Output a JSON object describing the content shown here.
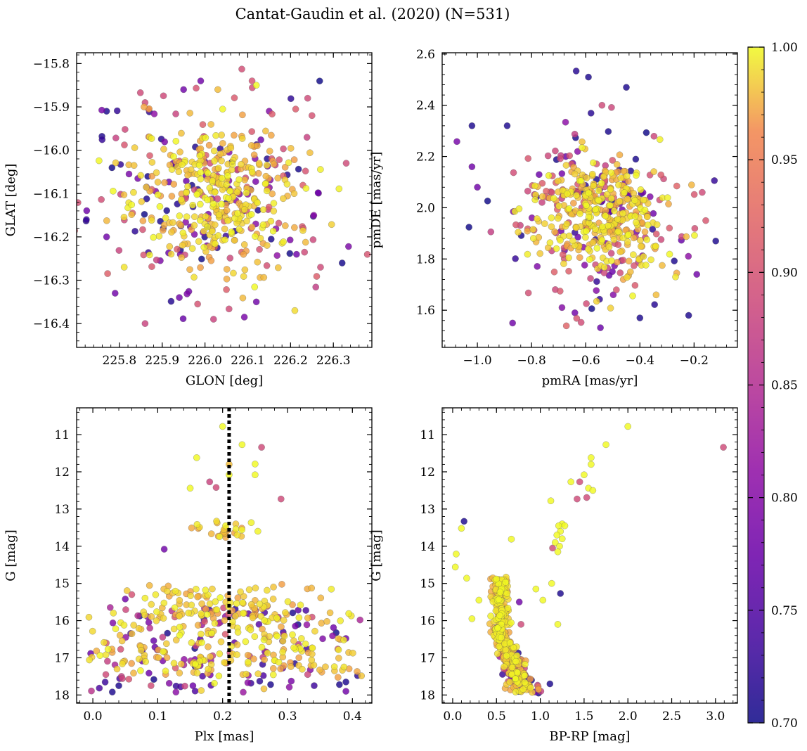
{
  "figure_title": "Cantat-Gaudin et al. (2020) (N=531)",
  "colorbar": {
    "min": 0.7,
    "max": 1.0,
    "tick_labels": [
      "0.70",
      "0.75",
      "0.80",
      "0.85",
      "0.90",
      "0.95",
      "1.00"
    ],
    "tick_values": [
      0.7,
      0.75,
      0.8,
      0.85,
      0.9,
      0.95,
      1.0
    ],
    "colormap": "plasma"
  },
  "chart_data": [
    {
      "id": "sky",
      "type": "scatter",
      "title": "",
      "xlabel": "GLON [deg]",
      "ylabel": "GLAT [deg]",
      "xlim": [
        225.7,
        226.39
      ],
      "ylim": [
        -16.455,
        -15.775
      ],
      "y_inverted": false,
      "xticks": [
        225.8,
        225.9,
        226.0,
        226.1,
        226.2,
        226.3
      ],
      "xtick_labels": [
        "225.8",
        "225.9",
        "226.0",
        "226.1",
        "226.2",
        "226.3"
      ],
      "yticks": [
        -15.8,
        -15.9,
        -16.0,
        -16.1,
        -16.2,
        -16.3,
        -16.4
      ],
      "ytick_labels": [
        "−15.8",
        "−15.9",
        "−16.0",
        "−16.1",
        "−16.2",
        "−16.3",
        "−16.4"
      ],
      "cluster": {
        "cx": 226.02,
        "cy": -16.1,
        "sx": 0.1,
        "sy": 0.09,
        "n": 531,
        "seed": 11
      },
      "points": [
        {
          "x": 225.77,
          "y": -15.91,
          "p": 0.71
        },
        {
          "x": 225.86,
          "y": -15.89,
          "p": 0.89
        },
        {
          "x": 226.03,
          "y": -15.86,
          "p": 0.98
        },
        {
          "x": 226.11,
          "y": -15.84,
          "p": 0.9
        },
        {
          "x": 226.12,
          "y": -15.85,
          "p": 1.0
        },
        {
          "x": 225.99,
          "y": -15.84,
          "p": 0.78
        },
        {
          "x": 225.95,
          "y": -15.86,
          "p": 0.78
        },
        {
          "x": 226.24,
          "y": -15.88,
          "p": 0.89
        },
        {
          "x": 226.25,
          "y": -15.92,
          "p": 0.9
        },
        {
          "x": 226.33,
          "y": -16.03,
          "p": 0.89
        },
        {
          "x": 225.86,
          "y": -16.4,
          "p": 0.88
        },
        {
          "x": 226.02,
          "y": -16.39,
          "p": 0.88
        },
        {
          "x": 225.79,
          "y": -16.33,
          "p": 0.78
        },
        {
          "x": 225.94,
          "y": -16.34,
          "p": 0.78
        },
        {
          "x": 226.12,
          "y": -16.35,
          "p": 0.78
        },
        {
          "x": 226.21,
          "y": -16.37,
          "p": 0.99
        },
        {
          "x": 226.27,
          "y": -16.27,
          "p": 0.89
        },
        {
          "x": 225.77,
          "y": -16.2,
          "p": 0.78
        }
      ]
    },
    {
      "id": "pm",
      "type": "scatter",
      "title": "",
      "xlabel": "pmRA [mas/yr]",
      "ylabel": "pmDE [mas/yr]",
      "xlim": [
        -1.13,
        -0.04
      ],
      "ylim": [
        1.455,
        2.605
      ],
      "y_inverted": false,
      "xticks": [
        -1.0,
        -0.8,
        -0.6,
        -0.4,
        -0.2
      ],
      "xtick_labels": [
        "−1.0",
        "−0.8",
        "−0.6",
        "−0.4",
        "−0.2"
      ],
      "yticks": [
        1.6,
        1.8,
        2.0,
        2.2,
        2.4,
        2.6
      ],
      "ytick_labels": [
        "1.6",
        "1.8",
        "2.0",
        "2.2",
        "2.4",
        "2.6"
      ],
      "cluster": {
        "cx": -0.56,
        "cy": 1.97,
        "sx": 0.12,
        "sy": 0.12,
        "n": 531,
        "seed": 23
      },
      "points": [
        {
          "x": -0.59,
          "y": 2.51,
          "p": 0.71
        },
        {
          "x": -0.45,
          "y": 2.47,
          "p": 0.71
        },
        {
          "x": -1.02,
          "y": 2.32,
          "p": 0.71
        },
        {
          "x": -0.89,
          "y": 2.32,
          "p": 0.71
        },
        {
          "x": -0.54,
          "y": 2.4,
          "p": 0.89
        },
        {
          "x": -0.12,
          "y": 1.87,
          "p": 0.71
        },
        {
          "x": -0.22,
          "y": 1.58,
          "p": 0.71
        },
        {
          "x": -0.4,
          "y": 1.57,
          "p": 0.71
        },
        {
          "x": -0.87,
          "y": 1.55,
          "p": 0.78
        },
        {
          "x": -1.0,
          "y": 2.08,
          "p": 0.78
        },
        {
          "x": -1.02,
          "y": 2.16,
          "p": 0.78
        },
        {
          "x": -0.17,
          "y": 2.06,
          "p": 0.89
        },
        {
          "x": -0.34,
          "y": 1.66,
          "p": 0.98
        },
        {
          "x": -0.64,
          "y": 1.59,
          "p": 0.78
        },
        {
          "x": -0.19,
          "y": 1.74,
          "p": 0.78
        }
      ]
    },
    {
      "id": "plx",
      "type": "scatter",
      "title": "",
      "xlabel": "Plx [mas]",
      "ylabel": "G [mag]",
      "xlim": [
        -0.025,
        0.43
      ],
      "ylim": [
        18.22,
        10.28
      ],
      "y_inverted": true,
      "xticks": [
        0.0,
        0.1,
        0.2,
        0.3,
        0.4
      ],
      "xtick_labels": [
        "0.0",
        "0.1",
        "0.2",
        "0.3",
        "0.4"
      ],
      "yticks": [
        11,
        12,
        13,
        14,
        15,
        16,
        17,
        18
      ],
      "ytick_labels": [
        "11",
        "12",
        "13",
        "14",
        "15",
        "16",
        "17",
        "18"
      ],
      "vline": {
        "x": 0.21,
        "style": "dotted"
      },
      "points": [
        {
          "x": 0.2,
          "y": 10.78,
          "p": 1.0
        },
        {
          "x": 0.23,
          "y": 11.27,
          "p": 1.0
        },
        {
          "x": 0.26,
          "y": 11.34,
          "p": 0.89
        },
        {
          "x": 0.16,
          "y": 11.62,
          "p": 1.0
        },
        {
          "x": 0.21,
          "y": 11.8,
          "p": 0.98
        },
        {
          "x": 0.25,
          "y": 11.79,
          "p": 1.0
        },
        {
          "x": 0.21,
          "y": 12.08,
          "p": 1.0
        },
        {
          "x": 0.25,
          "y": 12.08,
          "p": 1.0
        },
        {
          "x": 0.18,
          "y": 12.27,
          "p": 0.88
        },
        {
          "x": 0.19,
          "y": 12.42,
          "p": 0.89
        },
        {
          "x": 0.15,
          "y": 12.44,
          "p": 1.0
        },
        {
          "x": 0.29,
          "y": 12.73,
          "p": 0.89
        },
        {
          "x": 0.11,
          "y": 14.08,
          "p": 0.78
        },
        {
          "x": 0.05,
          "y": 15.42,
          "p": 0.78
        },
        {
          "x": 0.06,
          "y": 15.3,
          "p": 0.9
        },
        {
          "x": 0.02,
          "y": 17.45,
          "p": 0.89
        },
        {
          "x": 0.04,
          "y": 17.75,
          "p": 0.71
        },
        {
          "x": 0.03,
          "y": 17.92,
          "p": 0.71
        },
        {
          "x": 0.39,
          "y": 16.48,
          "p": 0.78
        },
        {
          "x": 0.38,
          "y": 17.72,
          "p": 0.71
        },
        {
          "x": 0.39,
          "y": 17.65,
          "p": 0.71
        },
        {
          "x": 0.39,
          "y": 17.9,
          "p": 0.78
        }
      ]
    },
    {
      "id": "cmd",
      "type": "scatter",
      "title": "",
      "xlabel": "BP-RP [mag]",
      "ylabel": "G [mag]",
      "xlim": [
        -0.12,
        3.25
      ],
      "ylim": [
        18.22,
        10.28
      ],
      "y_inverted": true,
      "xticks": [
        0.0,
        0.5,
        1.0,
        1.5,
        2.0,
        2.5,
        3.0
      ],
      "xtick_labels": [
        "0.0",
        "0.5",
        "1.0",
        "1.5",
        "2.0",
        "2.5",
        "3.0"
      ],
      "yticks": [
        11,
        12,
        13,
        14,
        15,
        16,
        17,
        18
      ],
      "ytick_labels": [
        "11",
        "12",
        "13",
        "14",
        "15",
        "16",
        "17",
        "18"
      ],
      "points": [
        {
          "x": 2.0,
          "y": 10.78,
          "p": 1.0
        },
        {
          "x": 1.75,
          "y": 11.27,
          "p": 1.0
        },
        {
          "x": 3.09,
          "y": 11.34,
          "p": 0.89
        },
        {
          "x": 1.58,
          "y": 11.62,
          "p": 1.0
        },
        {
          "x": 1.58,
          "y": 11.8,
          "p": 1.0
        },
        {
          "x": 1.5,
          "y": 12.08,
          "p": 1.0
        },
        {
          "x": 1.35,
          "y": 12.27,
          "p": 1.0
        },
        {
          "x": 1.45,
          "y": 12.27,
          "p": 0.89
        },
        {
          "x": 1.55,
          "y": 12.44,
          "p": 1.0
        },
        {
          "x": 1.6,
          "y": 12.5,
          "p": 1.0
        },
        {
          "x": 1.12,
          "y": 12.78,
          "p": 1.0
        },
        {
          "x": 1.53,
          "y": 12.69,
          "p": 0.89
        },
        {
          "x": 1.42,
          "y": 12.73,
          "p": 0.89
        },
        {
          "x": 0.1,
          "y": 13.52,
          "p": 1.0
        },
        {
          "x": 0.13,
          "y": 13.33,
          "p": 0.71
        },
        {
          "x": 0.67,
          "y": 13.81,
          "p": 1.0
        },
        {
          "x": 1.25,
          "y": 13.4,
          "p": 1.0
        },
        {
          "x": 1.21,
          "y": 13.45,
          "p": 1.0
        },
        {
          "x": 1.28,
          "y": 13.45,
          "p": 1.0
        },
        {
          "x": 1.23,
          "y": 13.6,
          "p": 1.0
        },
        {
          "x": 1.19,
          "y": 13.7,
          "p": 1.0
        },
        {
          "x": 1.25,
          "y": 13.8,
          "p": 1.0
        },
        {
          "x": 1.17,
          "y": 13.9,
          "p": 1.0
        },
        {
          "x": 1.22,
          "y": 14.0,
          "p": 1.0
        },
        {
          "x": 1.2,
          "y": 14.15,
          "p": 1.0
        },
        {
          "x": 1.14,
          "y": 14.05,
          "p": 0.89
        },
        {
          "x": 0.04,
          "y": 14.21,
          "p": 1.0
        },
        {
          "x": 0.03,
          "y": 14.56,
          "p": 1.0
        },
        {
          "x": 0.16,
          "y": 14.86,
          "p": 1.0
        },
        {
          "x": 1.13,
          "y": 15.0,
          "p": 1.0
        },
        {
          "x": 0.95,
          "y": 15.15,
          "p": 1.0
        },
        {
          "x": 1.03,
          "y": 15.45,
          "p": 1.0
        },
        {
          "x": 0.76,
          "y": 15.5,
          "p": 0.78
        },
        {
          "x": 1.23,
          "y": 15.27,
          "p": 0.71
        },
        {
          "x": 1.2,
          "y": 16.1,
          "p": 1.0
        },
        {
          "x": 0.78,
          "y": 16.1,
          "p": 0.89
        },
        {
          "x": 0.3,
          "y": 15.45,
          "p": 1.0
        },
        {
          "x": 0.22,
          "y": 15.95,
          "p": 1.0
        },
        {
          "x": 1.11,
          "y": 17.7,
          "p": 0.71
        },
        {
          "x": 0.98,
          "y": 17.95,
          "p": 0.71
        },
        {
          "x": 0.82,
          "y": 17.7,
          "p": 0.78
        },
        {
          "x": 0.9,
          "y": 17.6,
          "p": 0.71
        }
      ]
    }
  ]
}
